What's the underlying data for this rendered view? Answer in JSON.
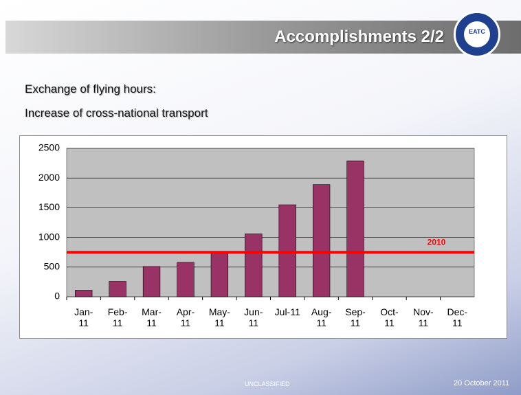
{
  "slide": {
    "title": "Accomplishments 2/2",
    "logo": "EATC",
    "bullets": [
      "Exchange of flying hours:",
      "Increase of cross-national transport"
    ],
    "classification": "UNCLASSIFIED",
    "date": "20 October 2011"
  },
  "chart_data": {
    "type": "bar",
    "categories": [
      "Jan-11",
      "Feb-11",
      "Mar-11",
      "Apr-11",
      "May-11",
      "Jun-11",
      "Jul-11",
      "Aug-11",
      "Sep-11",
      "Oct-11",
      "Nov-11",
      "Dec-11"
    ],
    "values": [
      110,
      260,
      510,
      580,
      760,
      1060,
      1550,
      1890,
      2290,
      null,
      null,
      null
    ],
    "color": "#993366",
    "ylim": [
      0,
      2500
    ],
    "yticks": [
      0,
      500,
      1000,
      1500,
      2000,
      2500
    ],
    "grid": true,
    "reference_line": {
      "label": "2010",
      "value": 750,
      "color": "#ff0000"
    }
  }
}
